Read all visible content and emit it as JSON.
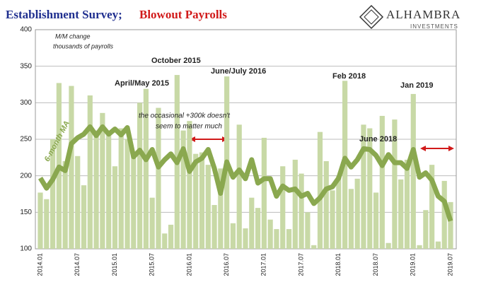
{
  "chart_data": {
    "type": "bar",
    "title": "Establishment Survey;",
    "title_highlight": "Blowout Payrolls",
    "logo": {
      "name": "ALHAMBRA",
      "sub": "INVESTMENTS"
    },
    "categories": [
      "2014.01",
      null,
      null,
      null,
      null,
      null,
      "2014.07",
      null,
      null,
      null,
      null,
      null,
      "2015.01",
      null,
      null,
      null,
      null,
      null,
      "2015.07",
      null,
      null,
      null,
      null,
      null,
      "2016.01",
      null,
      null,
      null,
      null,
      null,
      "2016.07",
      null,
      null,
      null,
      null,
      null,
      "2017.01",
      null,
      null,
      null,
      null,
      null,
      "2017.07",
      null,
      null,
      null,
      null,
      null,
      "2018.01",
      null,
      null,
      null,
      null,
      null,
      "2018.07",
      null,
      null,
      null,
      null,
      null,
      "2019.01",
      null,
      null,
      null,
      null,
      null,
      "2019.07"
    ],
    "values": [
      177,
      168,
      250,
      327,
      220,
      323,
      227,
      187,
      310,
      262,
      286,
      258,
      213,
      265,
      250,
      230,
      300,
      319,
      170,
      293,
      121,
      133,
      338,
      262,
      275,
      230,
      232,
      215,
      160,
      210,
      336,
      135,
      270,
      128,
      170,
      156,
      252,
      140,
      127,
      213,
      127,
      222,
      203,
      150,
      105,
      260,
      220,
      180,
      200,
      330,
      182,
      196,
      270,
      265,
      177,
      282,
      108,
      277,
      195,
      222,
      312,
      105,
      153,
      215,
      110,
      193,
      164
    ],
    "color": "#c8d9a6",
    "ma": {
      "label": "6-month MA",
      "color": "#8aa84f",
      "values": [
        197,
        183,
        195,
        212,
        207,
        244,
        252,
        257,
        267,
        255,
        267,
        257,
        264,
        256,
        266,
        226,
        235,
        222,
        236,
        212,
        222,
        230,
        218,
        237,
        206,
        219,
        224,
        236,
        210,
        176,
        219,
        198,
        208,
        196,
        222,
        190,
        196,
        196,
        172,
        186,
        180,
        182,
        172,
        176,
        162,
        170,
        182,
        185,
        197,
        224,
        212,
        222,
        237,
        236,
        228,
        214,
        229,
        218,
        218,
        210,
        236,
        198,
        204,
        194,
        172,
        165,
        138
      ]
    },
    "ylim": [
      100,
      400
    ],
    "yticks": [
      100,
      150,
      200,
      250,
      300,
      350,
      400
    ],
    "grid": true,
    "annotations": [
      "M/M change",
      "thousands of payrolls",
      "October 2015",
      "April/May 2015",
      "June/July 2016",
      "Feb 2018",
      "Jan 2019",
      "June 2018",
      "the occasional +300k doesn't",
      "seem to matter much"
    ]
  }
}
